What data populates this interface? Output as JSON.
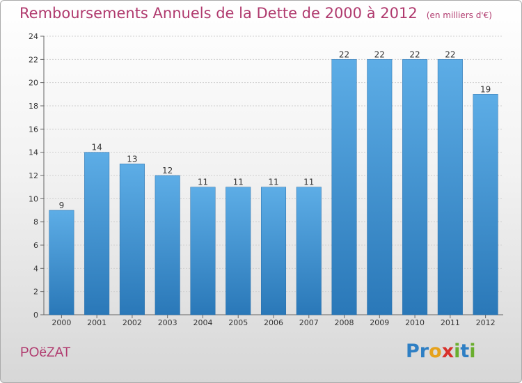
{
  "header": {
    "title": "Remboursements Annuels de la Dette de 2000 à 2012",
    "subtitle": "(en milliers d'€)"
  },
  "footer": {
    "commune": "POëZAT",
    "logo_text": "Proxiti",
    "logo_letters": [
      {
        "ch": "P",
        "color": "#2e7fc4"
      },
      {
        "ch": "r",
        "color": "#2e7fc4"
      },
      {
        "ch": "o",
        "color": "#e6a21c"
      },
      {
        "ch": "x",
        "color": "#d8312b"
      },
      {
        "ch": "i",
        "color": "#6aae2e"
      },
      {
        "ch": "t",
        "color": "#2e7fc4"
      },
      {
        "ch": "i",
        "color": "#6aae2e"
      }
    ]
  },
  "colors": {
    "title": "#b03a6e",
    "bar_top": "#5dade6",
    "bar_bottom": "#2a78b8",
    "grid": "#cccccc"
  },
  "chart_data": {
    "type": "bar",
    "title": "Remboursements Annuels de la Dette de 2000 à 2012",
    "subtitle": "(en milliers d'€)",
    "categories": [
      "2000",
      "2001",
      "2002",
      "2003",
      "2004",
      "2005",
      "2006",
      "2007",
      "2008",
      "2009",
      "2010",
      "2011",
      "2012"
    ],
    "values": [
      9,
      14,
      13,
      12,
      11,
      11,
      11,
      11,
      22,
      22,
      22,
      22,
      19
    ],
    "data_labels": [
      "9",
      "14",
      "13",
      "12",
      "11",
      "11",
      "11",
      "11",
      "22",
      "22",
      "22",
      "22",
      "19"
    ],
    "ylim": [
      0,
      24
    ],
    "yticks": [
      0,
      2,
      4,
      6,
      8,
      10,
      12,
      14,
      16,
      18,
      20,
      22,
      24
    ],
    "grid": true,
    "legend": "none"
  }
}
